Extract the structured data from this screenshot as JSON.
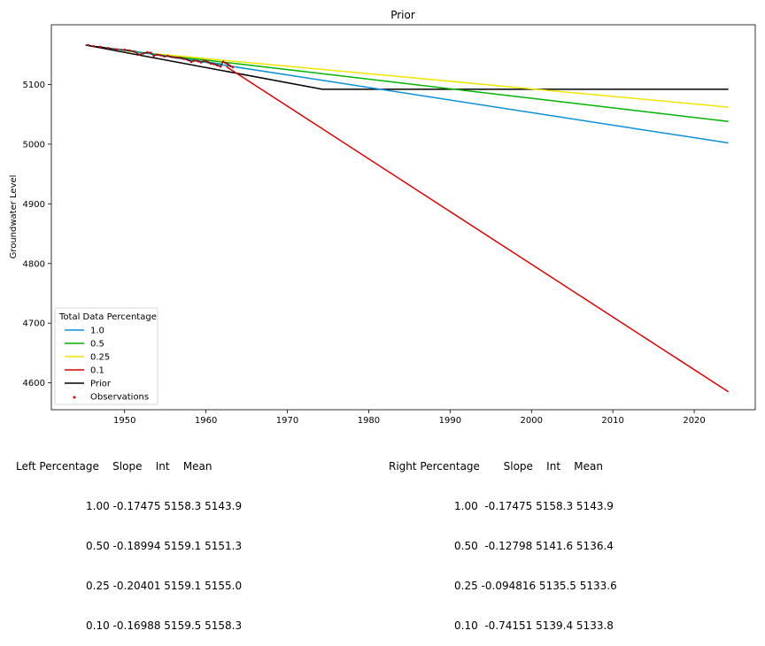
{
  "chart_data": {
    "type": "line",
    "title": "Prior",
    "xlabel": "",
    "ylabel": "Groundwater Level",
    "xlim": [
      1941.0,
      2027.5
    ],
    "ylim": [
      4555,
      5200
    ],
    "xticks": [
      "1950",
      "1960",
      "1970",
      "1980",
      "1990",
      "2000",
      "2010",
      "2020"
    ],
    "yticks": [
      "4600",
      "4700",
      "4800",
      "4900",
      "5000",
      "5100"
    ],
    "grid": false,
    "legend": {
      "title": "Total Data Percentage",
      "placement": "lower-left"
    },
    "series": [
      {
        "name": "1.0",
        "color": "#0c8fd6",
        "x": [
          1950.0,
          2024.2
        ],
        "y": [
          5158.0,
          5002.0
        ]
      },
      {
        "name": "0.5",
        "color": "#00b400",
        "x": [
          1950.0,
          2024.2
        ],
        "y": [
          5157.0,
          5038.0
        ]
      },
      {
        "name": "0.25",
        "color": "#f0e600",
        "x": [
          1950.0,
          2024.2
        ],
        "y": [
          5156.0,
          5062.0
        ]
      },
      {
        "name": "0.1",
        "color": "#dc0000",
        "x": [
          1962.5,
          2024.2
        ],
        "y": [
          5130.0,
          4585.0
        ]
      },
      {
        "name": "Prior",
        "color": "#000000",
        "x": [
          1945.2,
          1974.3,
          2024.2
        ],
        "y": [
          5166.0,
          5092.0,
          5092.0
        ]
      }
    ],
    "observations": {
      "name": "Observations",
      "color": "#d80000",
      "x": [
        1945.5,
        1946.2,
        1947.0,
        1948.0,
        1949.0,
        1950.0,
        1950.6,
        1951.2,
        1951.8,
        1952.3,
        1952.8,
        1953.2,
        1953.6,
        1954.0,
        1954.4,
        1954.9,
        1955.3,
        1955.8,
        1956.3,
        1956.8,
        1957.3,
        1957.8,
        1958.2,
        1958.6,
        1959.0,
        1959.4,
        1959.8,
        1960.2,
        1960.6,
        1961.0,
        1961.4,
        1961.8,
        1962.1,
        1962.4,
        1962.7,
        1963.0,
        1963.3
      ],
      "y": [
        5166,
        5164,
        5163,
        5161,
        5159,
        5158,
        5157,
        5155,
        5150,
        5152,
        5154,
        5153,
        5148,
        5150,
        5149,
        5147,
        5148,
        5146,
        5145,
        5145,
        5143,
        5141,
        5138,
        5140,
        5139,
        5137,
        5140,
        5138,
        5135,
        5134,
        5132,
        5130,
        5138,
        5136,
        5134,
        5131,
        5129
      ]
    },
    "blend": {
      "label": "",
      "color": "#00a0a0",
      "x": [
        1949.5,
        1953.0,
        1956.0,
        1959.0,
        1962.0
      ],
      "y": [
        5158.0,
        5152.0,
        5146.0,
        5140.0,
        5134.0
      ]
    }
  },
  "left_table": {
    "header": "Left Percentage    Slope    Int    Mean",
    "rows": [
      "1.00 -0.17475 5158.3 5143.9",
      "0.50 -0.18994 5159.1 5151.3",
      "0.25 -0.20401 5159.1 5155.0",
      "0.10 -0.16988 5159.5 5158.3"
    ]
  },
  "right_table": {
    "header": "Right Percentage       Slope    Int    Mean",
    "rows": [
      "1.00  -0.17475 5158.3 5143.9",
      "0.50  -0.12798 5141.6 5136.4",
      "0.25 -0.094816 5135.5 5133.6",
      "0.10  -0.74151 5139.4 5133.8"
    ]
  }
}
